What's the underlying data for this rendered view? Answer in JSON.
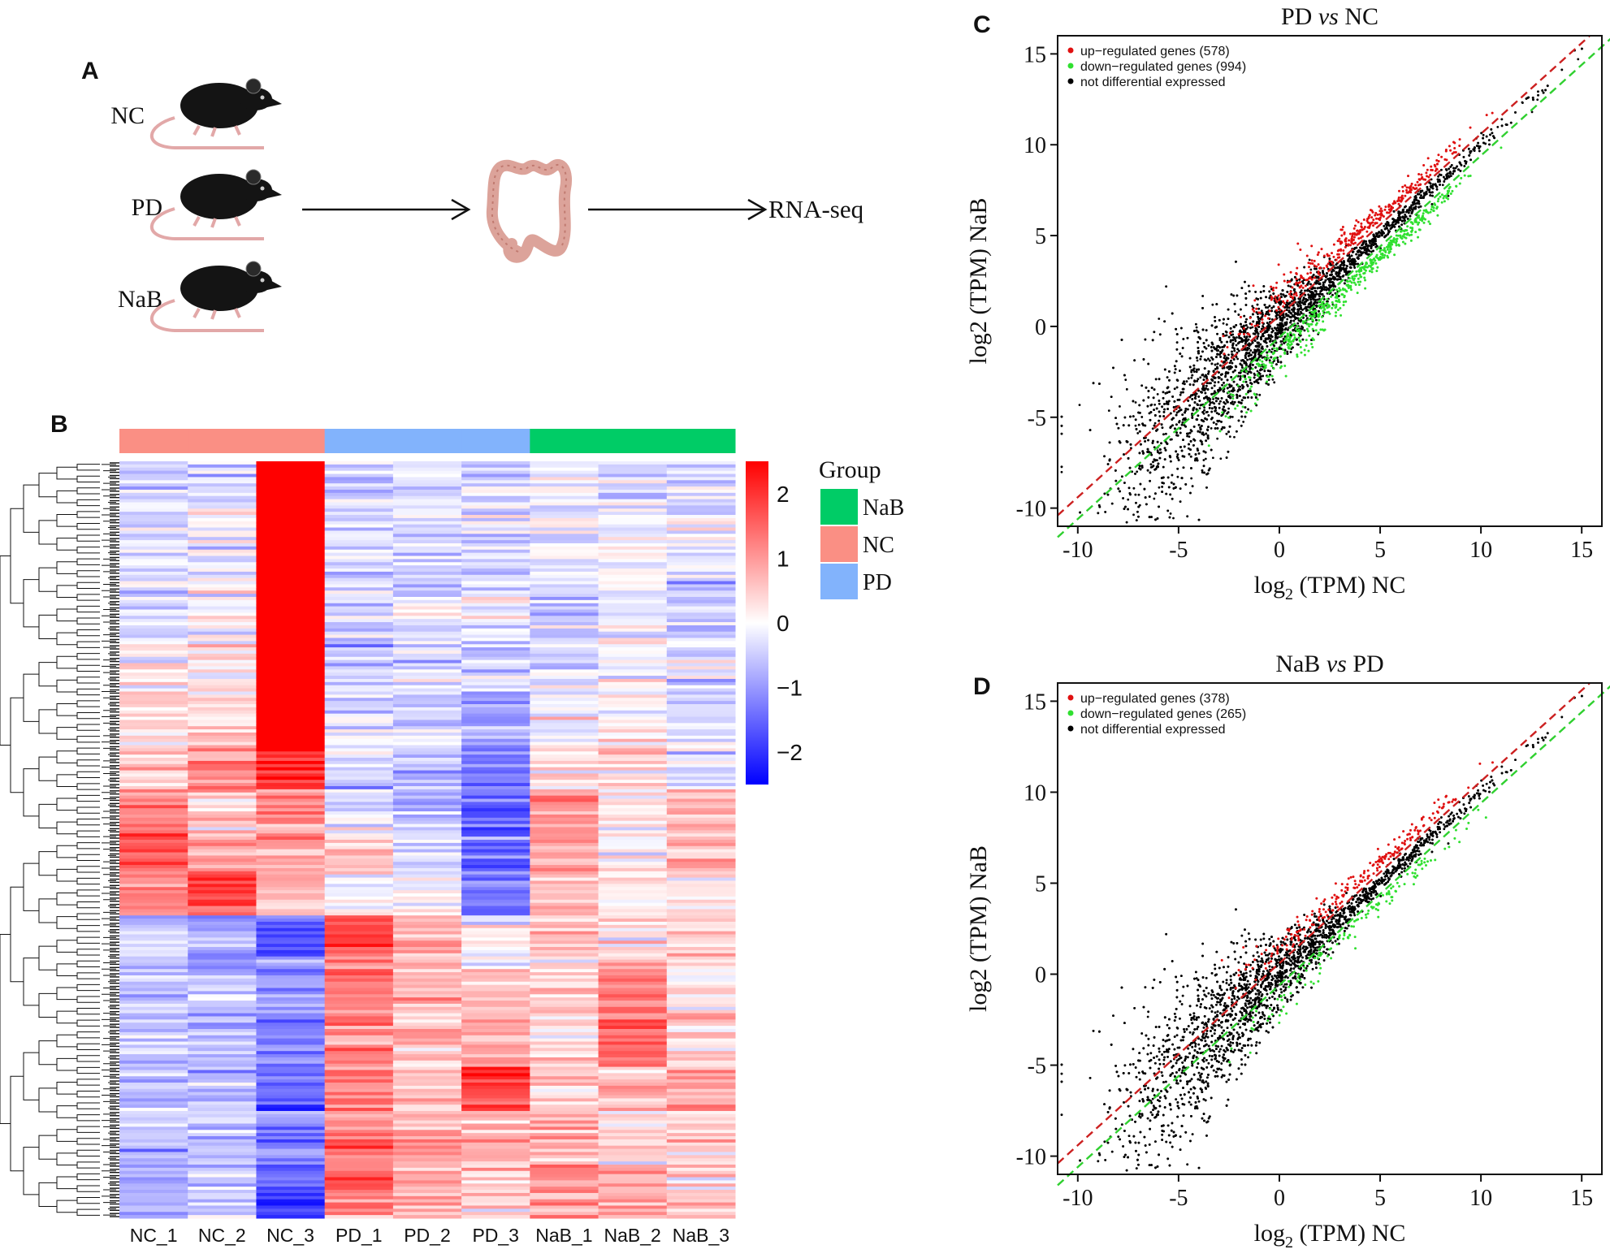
{
  "panels": {
    "A": "A",
    "B": "B",
    "C": "C",
    "D": "D"
  },
  "workflow": {
    "groups": [
      "NC",
      "PD",
      "NaB"
    ],
    "endpoint": "RNA-seq",
    "icons": [
      "mouse-icon",
      "colon-icon"
    ]
  },
  "chart_data": [
    {
      "panel": "B",
      "type": "heatmap",
      "samples": [
        "NC_1",
        "NC_2",
        "NC_3",
        "PD_1",
        "PD_2",
        "PD_3",
        "NaB_1",
        "NaB_2",
        "NaB_3"
      ],
      "sample_groups": [
        "NC",
        "NC",
        "NC",
        "PD",
        "PD",
        "PD",
        "NaB",
        "NaB",
        "NaB"
      ],
      "legend_title": "Group",
      "legend": [
        {
          "name": "NaB",
          "color": "#00cc66"
        },
        {
          "name": "NC",
          "color": "#fa8f84"
        },
        {
          "name": "PD",
          "color": "#82b3fc"
        }
      ],
      "colorbar": {
        "ticks": [
          "2",
          "1",
          "0",
          "−1",
          "−2"
        ],
        "range": [
          -2.5,
          2.5
        ],
        "colors": [
          "#0000ff",
          "#ffffff",
          "#ff0000"
        ]
      },
      "row_blocks": [
        {
          "rows": 0.07,
          "values": [
            -0.4,
            -0.3,
            2.5,
            -0.4,
            -0.4,
            -0.4,
            -0.3,
            -0.2,
            -0.3
          ]
        },
        {
          "rows": 0.09,
          "values": [
            -0.4,
            -0.2,
            2.5,
            -0.3,
            -0.4,
            -0.3,
            -0.1,
            0.0,
            -0.2
          ]
        },
        {
          "rows": 0.07,
          "values": [
            -0.3,
            0.0,
            2.5,
            -0.4,
            -0.3,
            -0.4,
            -0.4,
            -0.2,
            -0.5
          ]
        },
        {
          "rows": 0.07,
          "values": [
            0.1,
            0.2,
            2.5,
            -0.4,
            -0.3,
            -0.6,
            -0.3,
            -0.1,
            -0.3
          ]
        },
        {
          "rows": 0.07,
          "values": [
            0.2,
            0.4,
            2.4,
            -0.3,
            -0.4,
            -1.0,
            -0.2,
            0.2,
            -0.3
          ]
        },
        {
          "rows": 0.06,
          "values": [
            0.4,
            1.2,
            2.0,
            -0.5,
            -0.6,
            -1.2,
            0.3,
            0.4,
            -0.2
          ]
        },
        {
          "rows": 0.05,
          "values": [
            1.0,
            0.6,
            1.2,
            -0.3,
            -0.5,
            -1.3,
            1.2,
            0.3,
            0.5
          ]
        },
        {
          "rows": 0.06,
          "values": [
            1.4,
            1.0,
            0.9,
            0.4,
            -0.4,
            -1.6,
            0.8,
            0.1,
            0.6
          ]
        },
        {
          "rows": 0.06,
          "values": [
            1.2,
            1.8,
            0.6,
            0.2,
            -0.3,
            -1.4,
            0.6,
            0.2,
            0.3
          ]
        },
        {
          "rows": 0.06,
          "values": [
            -0.6,
            -0.8,
            -1.6,
            1.8,
            0.9,
            0.2,
            0.6,
            0.4,
            0.3
          ]
        },
        {
          "rows": 0.07,
          "values": [
            -0.5,
            -0.6,
            -1.2,
            1.4,
            0.7,
            0.3,
            0.2,
            1.2,
            0.2
          ]
        },
        {
          "rows": 0.07,
          "values": [
            -0.6,
            -0.7,
            -1.3,
            1.2,
            0.6,
            0.8,
            0.3,
            1.5,
            0.4
          ]
        },
        {
          "rows": 0.06,
          "values": [
            -0.7,
            -0.7,
            -1.4,
            1.2,
            0.7,
            1.8,
            0.4,
            0.7,
            0.9
          ]
        },
        {
          "rows": 0.07,
          "values": [
            -0.6,
            -0.6,
            -1.3,
            1.3,
            0.9,
            0.7,
            0.8,
            0.5,
            0.5
          ]
        },
        {
          "rows": 0.07,
          "values": [
            -0.7,
            -0.5,
            -1.8,
            1.6,
            0.8,
            0.5,
            1.0,
            0.8,
            0.4
          ]
        }
      ]
    },
    {
      "panel": "C",
      "type": "scatter",
      "title_left": "PD",
      "title_mid": "vs",
      "title_right": "NC",
      "xlabel_prefix": "log",
      "xlabel_sub": "2",
      "xlabel_suffix": "(TPM) NC",
      "ylabel": "log2 (TPM) NaB",
      "xlim": [
        -11,
        16
      ],
      "ylim": [
        -11,
        16
      ],
      "xticks": [
        -10,
        -5,
        0,
        5,
        10,
        15
      ],
      "yticks": [
        -10,
        -5,
        0,
        5,
        10,
        15
      ],
      "xtick_labels": [
        "-10",
        "-5",
        "0",
        "5",
        "10",
        "15"
      ],
      "ytick_labels": [
        "-10",
        "-5",
        "0",
        "5",
        "10",
        "15"
      ],
      "legend": [
        {
          "label": "up−regulated genes (578)",
          "color": "#e01010"
        },
        {
          "label": "down−regulated genes (994)",
          "color": "#30e030"
        },
        {
          "label": "not differential expressed",
          "color": "#000000"
        }
      ],
      "up_count": 578,
      "down_count": 994,
      "reference_lines": [
        {
          "color": "#cc2020",
          "offset": 0.6
        },
        {
          "color": "#30d030",
          "offset": -0.6
        }
      ]
    },
    {
      "panel": "D",
      "type": "scatter",
      "title_left": "NaB",
      "title_mid": "vs",
      "title_right": "PD",
      "xlabel_prefix": "log",
      "xlabel_sub": "2",
      "xlabel_suffix": "(TPM) NC",
      "ylabel": "log2 (TPM) NaB",
      "xlim": [
        -11,
        16
      ],
      "ylim": [
        -11,
        16
      ],
      "xticks": [
        -10,
        -5,
        0,
        5,
        10,
        15
      ],
      "yticks": [
        -10,
        -5,
        0,
        5,
        10,
        15
      ],
      "xtick_labels": [
        "-10",
        "-5",
        "0",
        "5",
        "10",
        "15"
      ],
      "ytick_labels": [
        "-10",
        "-5",
        "0",
        "5",
        "10",
        "15"
      ],
      "legend": [
        {
          "label": "up−regulated genes (378)",
          "color": "#e01010"
        },
        {
          "label": "down−regulated genes (265)",
          "color": "#30e030"
        },
        {
          "label": "not differential expressed",
          "color": "#000000"
        }
      ],
      "up_count": 378,
      "down_count": 265,
      "reference_lines": [
        {
          "color": "#cc2020",
          "offset": 0.6
        },
        {
          "color": "#30d030",
          "offset": -0.6
        }
      ]
    }
  ]
}
